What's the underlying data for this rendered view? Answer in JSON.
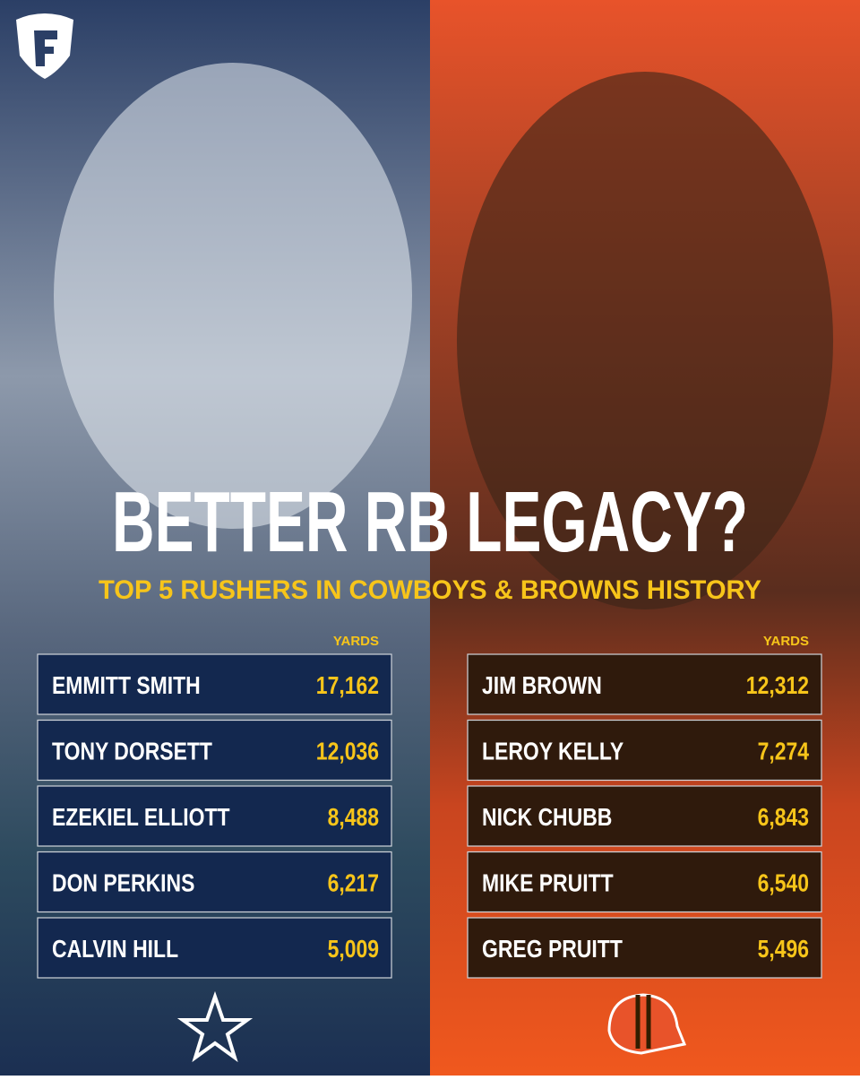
{
  "title": "BETTER RB LEGACY?",
  "subtitle": "TOP 5 RUSHERS IN COWBOYS & BROWNS HISTORY",
  "tables": [
    {
      "team": "Cowboys",
      "header": "YARDS",
      "rows": [
        [
          "EMMITT SMITH",
          "17,162"
        ],
        [
          "TONY DORSETT",
          "12,036"
        ],
        [
          "EZEKIEL ELLIOTT",
          "8,488"
        ],
        [
          "DON PERKINS",
          "6,217"
        ],
        [
          "CALVIN HILL",
          "5,009"
        ]
      ]
    },
    {
      "team": "Browns",
      "header": "YARDS",
      "rows": [
        [
          "JIM BROWN",
          "12,312"
        ],
        [
          "LEROY KELLY",
          "7,274"
        ],
        [
          "NICK CHUBB",
          "6,843"
        ],
        [
          "MIKE PRUITT",
          "6,540"
        ],
        [
          "GREG PRUITT",
          "5,496"
        ]
      ]
    }
  ]
}
